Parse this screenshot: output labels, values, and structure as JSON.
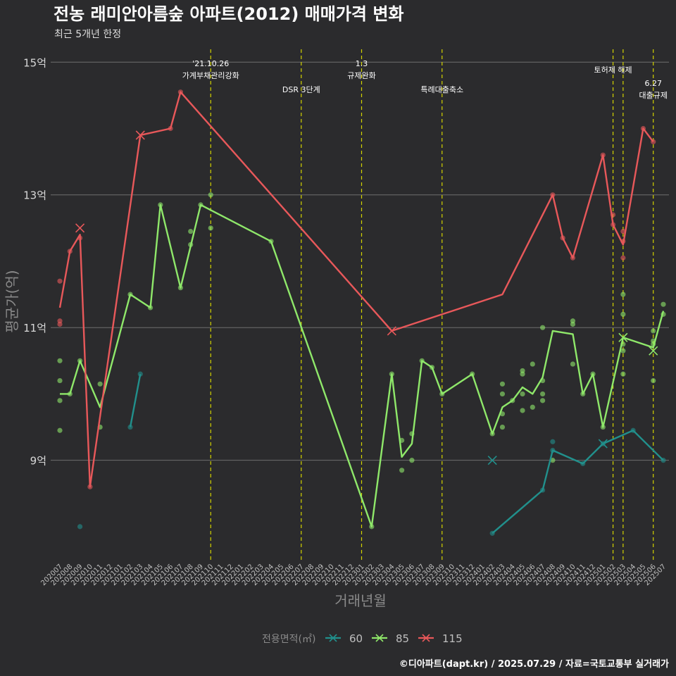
{
  "chart_data": {
    "type": "line",
    "title": "전농 래미안아름숲 아파트(2012) 매매가격 변화",
    "subtitle": "최근 5개년 한정",
    "xlabel": "거래년월",
    "ylabel": "평균가(억)",
    "ylim": [
      7.5,
      15.3
    ],
    "yticks": [
      {
        "value": 9,
        "label": "9억"
      },
      {
        "value": 11,
        "label": "11억"
      },
      {
        "value": 13,
        "label": "13억"
      },
      {
        "value": 15,
        "label": "15억"
      }
    ],
    "x_categories": [
      "202007",
      "202008",
      "202009",
      "202010",
      "202011",
      "202012",
      "202101",
      "202102",
      "202103",
      "202104",
      "202105",
      "202106",
      "202107",
      "202108",
      "202109",
      "202110",
      "202111",
      "202112",
      "202201",
      "202202",
      "202203",
      "202204",
      "202205",
      "202206",
      "202207",
      "202208",
      "202209",
      "202210",
      "202211",
      "202212",
      "202301",
      "202302",
      "202303",
      "202304",
      "202305",
      "202306",
      "202307",
      "202308",
      "202309",
      "202310",
      "202311",
      "202312",
      "202401",
      "202402",
      "202403",
      "202404",
      "202405",
      "202406",
      "202407",
      "202408",
      "202409",
      "202410",
      "202411",
      "202412",
      "202501",
      "202502",
      "202503",
      "202504",
      "202505",
      "202506",
      "202507"
    ],
    "legend": {
      "title": "전용면적(㎡)",
      "position": "bottom",
      "items": [
        {
          "label": "60",
          "color": "#21908c"
        },
        {
          "label": "85",
          "color": "#8fe86a"
        },
        {
          "label": "115",
          "color": "#e8585a"
        }
      ]
    },
    "series": [
      {
        "name": "60",
        "color": "#21908c",
        "line": [
          {
            "x": "202102",
            "y": 9.5
          },
          {
            "x": "202103",
            "y": 10.3
          }
        ],
        "line2": [
          {
            "x": "202402",
            "y": 7.9
          },
          {
            "x": "202407",
            "y": 8.55
          },
          {
            "x": "202408",
            "y": 9.15
          },
          {
            "x": "202411",
            "y": 8.95
          },
          {
            "x": "202501",
            "y": 9.25
          },
          {
            "x": "202504",
            "y": 9.45
          },
          {
            "x": "202507",
            "y": 9.0
          }
        ],
        "points": [
          {
            "x": "202009",
            "y": 8.0
          },
          {
            "x": "202102",
            "y": 9.5
          },
          {
            "x": "202103",
            "y": 10.3
          },
          {
            "x": "202402",
            "y": 7.9
          },
          {
            "x": "202407",
            "y": 8.55
          },
          {
            "x": "202408",
            "y": 9.28
          },
          {
            "x": "202408",
            "y": 9.15
          },
          {
            "x": "202411",
            "y": 8.95
          },
          {
            "x": "202501",
            "y": 9.25
          },
          {
            "x": "202504",
            "y": 9.45
          },
          {
            "x": "202507",
            "y": 9.0
          }
        ],
        "cross": [
          {
            "x": "202402",
            "y": 9.0
          },
          {
            "x": "202501",
            "y": 9.25
          }
        ]
      },
      {
        "name": "85",
        "color": "#8fe86a",
        "line": [
          {
            "x": "202007",
            "y": 10.0
          },
          {
            "x": "202008",
            "y": 10.0
          },
          {
            "x": "202009",
            "y": 10.5
          },
          {
            "x": "202011",
            "y": 9.8
          },
          {
            "x": "202102",
            "y": 11.5
          },
          {
            "x": "202104",
            "y": 11.3
          },
          {
            "x": "202105",
            "y": 12.85
          },
          {
            "x": "202107",
            "y": 11.6
          },
          {
            "x": "202109",
            "y": 12.85
          },
          {
            "x": "202204",
            "y": 12.3
          },
          {
            "x": "202302",
            "y": 8.0
          },
          {
            "x": "202304",
            "y": 10.3
          },
          {
            "x": "202305",
            "y": 9.05
          },
          {
            "x": "202306",
            "y": 9.25
          },
          {
            "x": "202307",
            "y": 10.5
          },
          {
            "x": "202308",
            "y": 10.4
          },
          {
            "x": "202309",
            "y": 10.0
          },
          {
            "x": "202312",
            "y": 10.3
          },
          {
            "x": "202402",
            "y": 9.4
          },
          {
            "x": "202403",
            "y": 9.8
          },
          {
            "x": "202404",
            "y": 9.9
          },
          {
            "x": "202405",
            "y": 10.1
          },
          {
            "x": "202406",
            "y": 10.0
          },
          {
            "x": "202407",
            "y": 10.25
          },
          {
            "x": "202408",
            "y": 10.95
          },
          {
            "x": "202410",
            "y": 10.9
          },
          {
            "x": "202411",
            "y": 10.0
          },
          {
            "x": "202412",
            "y": 10.3
          },
          {
            "x": "202501",
            "y": 9.5
          },
          {
            "x": "202503",
            "y": 10.85
          },
          {
            "x": "202506",
            "y": 10.7
          },
          {
            "x": "202507",
            "y": 11.25
          }
        ],
        "points": [
          {
            "x": "202007",
            "y": 10.5
          },
          {
            "x": "202007",
            "y": 10.2
          },
          {
            "x": "202007",
            "y": 9.9
          },
          {
            "x": "202007",
            "y": 9.45
          },
          {
            "x": "202008",
            "y": 10.0
          },
          {
            "x": "202009",
            "y": 10.5
          },
          {
            "x": "202011",
            "y": 10.15
          },
          {
            "x": "202011",
            "y": 9.5
          },
          {
            "x": "202102",
            "y": 11.5
          },
          {
            "x": "202104",
            "y": 11.3
          },
          {
            "x": "202105",
            "y": 12.85
          },
          {
            "x": "202107",
            "y": 11.6
          },
          {
            "x": "202108",
            "y": 12.45
          },
          {
            "x": "202108",
            "y": 12.25
          },
          {
            "x": "202109",
            "y": 12.85
          },
          {
            "x": "202110",
            "y": 13.0
          },
          {
            "x": "202110",
            "y": 12.5
          },
          {
            "x": "202204",
            "y": 12.3
          },
          {
            "x": "202302",
            "y": 8.0
          },
          {
            "x": "202304",
            "y": 10.3
          },
          {
            "x": "202305",
            "y": 9.3
          },
          {
            "x": "202305",
            "y": 8.85
          },
          {
            "x": "202306",
            "y": 9.4
          },
          {
            "x": "202306",
            "y": 9.0
          },
          {
            "x": "202307",
            "y": 10.5
          },
          {
            "x": "202308",
            "y": 10.4
          },
          {
            "x": "202309",
            "y": 10.0
          },
          {
            "x": "202312",
            "y": 10.3
          },
          {
            "x": "202402",
            "y": 9.4
          },
          {
            "x": "202403",
            "y": 10.15
          },
          {
            "x": "202403",
            "y": 10.0
          },
          {
            "x": "202403",
            "y": 9.7
          },
          {
            "x": "202403",
            "y": 9.5
          },
          {
            "x": "202404",
            "y": 9.9
          },
          {
            "x": "202405",
            "y": 10.35
          },
          {
            "x": "202405",
            "y": 10.3
          },
          {
            "x": "202405",
            "y": 10.0
          },
          {
            "x": "202405",
            "y": 9.75
          },
          {
            "x": "202406",
            "y": 10.45
          },
          {
            "x": "202406",
            "y": 9.8
          },
          {
            "x": "202407",
            "y": 11.0
          },
          {
            "x": "202407",
            "y": 10.2
          },
          {
            "x": "202407",
            "y": 10.0
          },
          {
            "x": "202407",
            "y": 9.9
          },
          {
            "x": "202408",
            "y": 9.0
          },
          {
            "x": "202410",
            "y": 11.1
          },
          {
            "x": "202410",
            "y": 11.05
          },
          {
            "x": "202410",
            "y": 10.45
          },
          {
            "x": "202411",
            "y": 10.0
          },
          {
            "x": "202412",
            "y": 10.3
          },
          {
            "x": "202501",
            "y": 9.5
          },
          {
            "x": "202503",
            "y": 11.5
          },
          {
            "x": "202503",
            "y": 11.2
          },
          {
            "x": "202503",
            "y": 10.75
          },
          {
            "x": "202503",
            "y": 10.65
          },
          {
            "x": "202503",
            "y": 10.3
          },
          {
            "x": "202506",
            "y": 10.95
          },
          {
            "x": "202506",
            "y": 10.8
          },
          {
            "x": "202506",
            "y": 10.75
          },
          {
            "x": "202506",
            "y": 10.2
          },
          {
            "x": "202507",
            "y": 11.35
          },
          {
            "x": "202507",
            "y": 11.2
          }
        ],
        "cross": [
          {
            "x": "202503",
            "y": 10.85
          },
          {
            "x": "202506",
            "y": 10.65
          }
        ]
      },
      {
        "name": "115",
        "color": "#e8585a",
        "line": [
          {
            "x": "202007",
            "y": 11.3
          },
          {
            "x": "202008",
            "y": 12.15
          },
          {
            "x": "202009",
            "y": 12.4
          },
          {
            "x": "202010",
            "y": 8.6
          },
          {
            "x": "202103",
            "y": 13.9
          },
          {
            "x": "202106",
            "y": 14.0
          },
          {
            "x": "202107",
            "y": 14.55
          },
          {
            "x": "202304",
            "y": 10.95
          },
          {
            "x": "202403",
            "y": 11.5
          },
          {
            "x": "202408",
            "y": 13.0
          },
          {
            "x": "202409",
            "y": 12.35
          },
          {
            "x": "202410",
            "y": 12.05
          },
          {
            "x": "202501",
            "y": 13.6
          },
          {
            "x": "202502",
            "y": 12.55
          },
          {
            "x": "202503",
            "y": 12.25
          },
          {
            "x": "202505",
            "y": 14.0
          },
          {
            "x": "202506",
            "y": 13.8
          }
        ],
        "points": [
          {
            "x": "202007",
            "y": 11.7
          },
          {
            "x": "202007",
            "y": 11.1
          },
          {
            "x": "202007",
            "y": 11.05
          },
          {
            "x": "202008",
            "y": 12.15
          },
          {
            "x": "202009",
            "y": 12.35
          },
          {
            "x": "202010",
            "y": 8.6
          },
          {
            "x": "202106",
            "y": 14.0
          },
          {
            "x": "202107",
            "y": 14.55
          },
          {
            "x": "202408",
            "y": 13.0
          },
          {
            "x": "202409",
            "y": 12.35
          },
          {
            "x": "202410",
            "y": 12.05
          },
          {
            "x": "202501",
            "y": 13.6
          },
          {
            "x": "202502",
            "y": 12.7
          },
          {
            "x": "202502",
            "y": 12.55
          },
          {
            "x": "202503",
            "y": 12.45
          },
          {
            "x": "202503",
            "y": 12.3
          },
          {
            "x": "202503",
            "y": 12.05
          },
          {
            "x": "202505",
            "y": 14.0
          },
          {
            "x": "202506",
            "y": 13.8
          }
        ],
        "cross": [
          {
            "x": "202009",
            "y": 12.5
          },
          {
            "x": "202103",
            "y": 13.9
          },
          {
            "x": "202304",
            "y": 10.95
          }
        ]
      }
    ],
    "vlines": [
      {
        "x": "202110",
        "label": "'21.10.26\n가계부채관리강화",
        "pos": "top"
      },
      {
        "x": "202207",
        "label": "DSR 3단계",
        "pos": "low"
      },
      {
        "x": "202301",
        "label": "1.3\n규제완화",
        "pos": "top"
      },
      {
        "x": "202309",
        "label": "특례대출축소",
        "pos": "low"
      },
      {
        "x": "202502",
        "label": "토허제 해제",
        "pos": "mid"
      },
      {
        "x": "202503",
        "label": "",
        "pos": "mid"
      },
      {
        "x": "202506",
        "label": "6.27\n대출규제",
        "pos": "low"
      }
    ],
    "grid": true,
    "credit": "©디아파트(dapt.kr) / 2025.07.29 / 자료=국토교통부 실거래가"
  }
}
